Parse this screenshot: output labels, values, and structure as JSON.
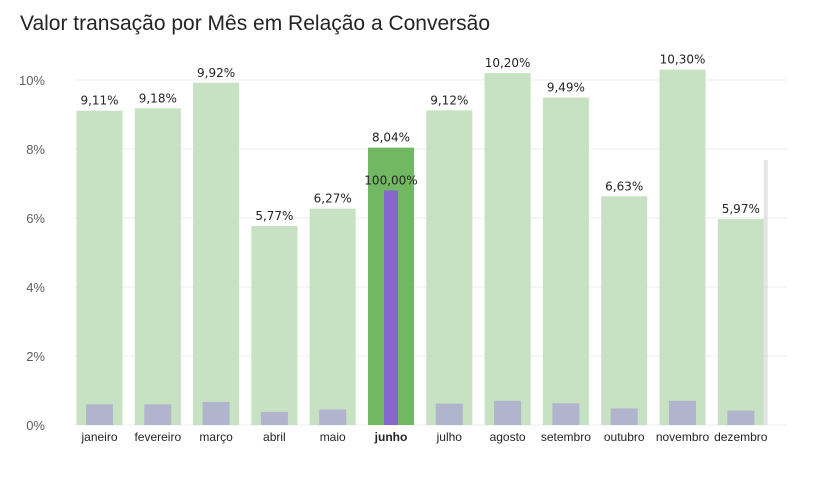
{
  "chart_data": {
    "type": "bar",
    "title": "Valor transação por Mês em Relação a Conversão",
    "xlabel": "",
    "ylabel": "",
    "ylim": [
      0,
      10.5
    ],
    "yticks": [
      "0%",
      "2%",
      "4%",
      "6%",
      "8%",
      "10%"
    ],
    "ytick_values": [
      0,
      2,
      4,
      6,
      8,
      10
    ],
    "grid": true,
    "categories": [
      "janeiro",
      "fevereiro",
      "março",
      "abril",
      "maio",
      "junho",
      "julho",
      "agosto",
      "setembro",
      "outubro",
      "novembro",
      "dezembro"
    ],
    "highlighted_category": "junho",
    "series": [
      {
        "values": [
          9.11,
          9.18,
          9.92,
          5.77,
          6.27,
          8.04,
          9.12,
          10.2,
          9.49,
          6.63,
          10.3,
          5.97
        ],
        "labels": [
          "9,11%",
          "9,18%",
          "9,92%",
          "5,77%",
          "6,27%",
          "8,04%",
          "9,12%",
          "10,20%",
          "9,49%",
          "6,63%",
          "10,30%",
          "5,97%"
        ],
        "color": "#c6e2c2",
        "highlight_color": "#72b863"
      },
      {
        "values": [
          0.6,
          0.6,
          0.67,
          0.38,
          0.45,
          6.8,
          0.62,
          0.7,
          0.63,
          0.48,
          0.7,
          0.42
        ],
        "highlight_label": "100,00%",
        "color": "#b0b4cc",
        "highlight_color": "#8668cc"
      }
    ]
  }
}
